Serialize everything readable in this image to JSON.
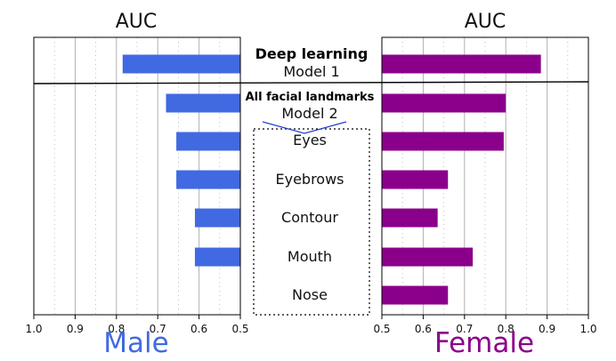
{
  "chart_data": {
    "type": "bar",
    "orientation": "horizontal",
    "layout": "mirrored back-to-back panels",
    "categories": [
      "Deep learning",
      "All facial landmarks",
      "Eyes",
      "Eyebrows",
      "Contour",
      "Mouth",
      "Nose"
    ],
    "category_labels": [
      {
        "line1": "Deep learning",
        "line2": "Model 1",
        "bold": true
      },
      {
        "line1": "All facial landmarks",
        "line2": "Model 2",
        "bold": true
      },
      {
        "line1": "Eyes",
        "line2": "",
        "bold": false
      },
      {
        "line1": "Eyebrows",
        "line2": "",
        "bold": false
      },
      {
        "line1": "Contour",
        "line2": "",
        "bold": false
      },
      {
        "line1": "Mouth",
        "line2": "",
        "bold": false
      },
      {
        "line1": "Nose",
        "line2": "",
        "bold": false
      }
    ],
    "series": [
      {
        "name": "Male",
        "color": "#4169E1",
        "side": "left",
        "axis_reversed": true,
        "values": [
          0.785,
          0.68,
          0.655,
          0.655,
          0.61,
          0.61,
          0.5
        ]
      },
      {
        "name": "Female",
        "color": "#8B008B",
        "side": "right",
        "axis_reversed": false,
        "values": [
          0.885,
          0.8,
          0.795,
          0.66,
          0.635,
          0.72,
          0.66
        ]
      }
    ],
    "panel_title_left": "AUC",
    "panel_title_right": "AUC",
    "xlim_left": [
      1.0,
      0.5
    ],
    "xlim_right": [
      0.5,
      1.0
    ],
    "ticks_left": [
      "1.0",
      "0.9",
      "0.8",
      "0.7",
      "0.6",
      "0.5"
    ],
    "ticks_right": [
      "0.5",
      "0.6",
      "0.7",
      "0.8",
      "0.9",
      "1.0"
    ],
    "major_grid": [
      0.6,
      0.7,
      0.8,
      0.9
    ],
    "minor_grid": [
      0.55,
      0.65,
      0.75,
      0.85,
      0.95
    ],
    "grid": true
  },
  "colors": {
    "male": "#4169E1",
    "female": "#8B008B",
    "grid": "#b0b0b0",
    "frame": "#000000"
  }
}
